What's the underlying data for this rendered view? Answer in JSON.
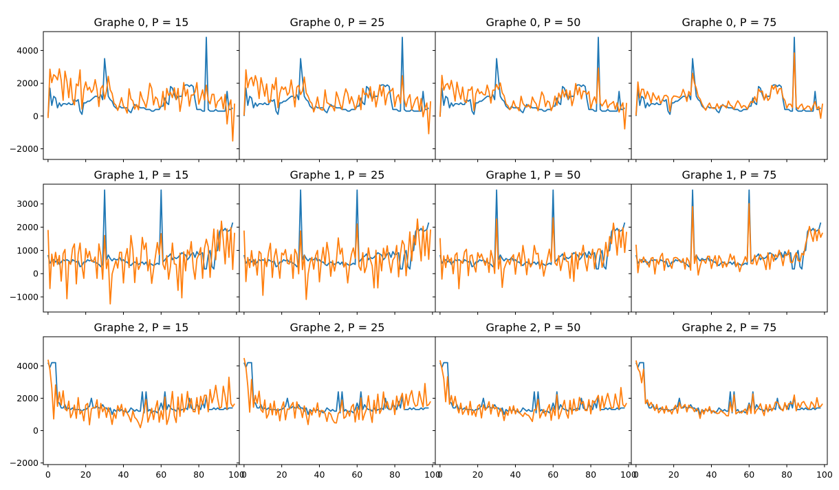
{
  "chart_data": {
    "type": "line",
    "layout": "grid 3x4, shared x axis, y axis shared within each row",
    "colors": {
      "series_0": "#1f77b4",
      "series_1": "#ff7f0e"
    },
    "x_ticks": [
      0,
      20,
      40,
      60,
      80,
      100
    ],
    "xlim": [
      -2.5,
      101.5
    ],
    "grid": false,
    "rows": [
      {
        "ylim": [
          -2650,
          5150
        ],
        "y_ticks": [
          -2000,
          0,
          2000,
          4000
        ],
        "panels": [
          {
            "title": "Graphe 0, P = 15"
          },
          {
            "title": "Graphe 0, P = 25"
          },
          {
            "title": "Graphe 0, P = 50"
          },
          {
            "title": "Graphe 0, P = 75"
          }
        ]
      },
      {
        "ylim": [
          -1650,
          3850
        ],
        "y_ticks": [
          -1000,
          0,
          1000,
          2000,
          3000
        ],
        "panels": [
          {
            "title": "Graphe 1, P = 15"
          },
          {
            "title": "Graphe 1, P = 25"
          },
          {
            "title": "Graphe 1, P = 50"
          },
          {
            "title": "Graphe 1, P = 75"
          }
        ]
      },
      {
        "ylim": [
          -2100,
          5800
        ],
        "y_ticks": [
          -2000,
          0,
          2000,
          4000
        ],
        "panels": [
          {
            "title": "Graphe 2, P = 15"
          },
          {
            "title": "Graphe 2, P = 25"
          },
          {
            "title": "Graphe 2, P = 50"
          },
          {
            "title": "Graphe 2, P = 75"
          }
        ]
      }
    ],
    "series": [
      {
        "name": "",
        "per_row": [
          [
            0,
            1700,
            650,
            1200,
            1100,
            500,
            800,
            600,
            750,
            750,
            700,
            800,
            700,
            700,
            1000,
            900,
            1000,
            300,
            100,
            800,
            800,
            900,
            900,
            1000,
            1100,
            1200,
            1200,
            1100,
            1300,
            1000,
            3500,
            2300,
            1200,
            1000,
            900,
            600,
            500,
            400,
            600,
            500,
            500,
            500,
            500,
            300,
            200,
            500,
            700,
            600,
            600,
            500,
            500,
            500,
            400,
            400,
            400,
            300,
            300,
            400,
            400,
            400,
            600,
            600,
            1100,
            800,
            700,
            1800,
            1700,
            1300,
            1000,
            1200,
            1200,
            1200,
            1800,
            1900,
            1900,
            1800,
            1900,
            1800,
            1000,
            400,
            400,
            400,
            300,
            300,
            4800,
            400,
            300,
            300,
            300,
            400,
            300,
            300,
            300,
            300,
            300,
            1500,
            400,
            400,
            500
          ],
          [
            800,
            450,
            550,
            600,
            500,
            600,
            400,
            500,
            600,
            550,
            600,
            550,
            450,
            600,
            550,
            500,
            550,
            300,
            350,
            500,
            500,
            600,
            550,
            600,
            500,
            500,
            450,
            400,
            300,
            400,
            3600,
            600,
            800,
            650,
            550,
            650,
            600,
            600,
            700,
            550,
            600,
            500,
            500,
            400,
            350,
            450,
            500,
            450,
            400,
            450,
            500,
            400,
            500,
            300,
            450,
            400,
            350,
            400,
            450,
            400,
            3600,
            500,
            600,
            700,
            750,
            850,
            600,
            700,
            650,
            700,
            800,
            900,
            850,
            800,
            600,
            700,
            850,
            900,
            700,
            950,
            800,
            850,
            900,
            200,
            200,
            800,
            1000,
            300,
            200,
            950,
            1000,
            1800,
            1950,
            1850,
            1950,
            1800,
            1850,
            1900,
            2200
          ],
          [
            4200,
            3900,
            4200,
            4200,
            4200,
            1800,
            1700,
            1400,
            1400,
            1600,
            1300,
            1400,
            1300,
            1400,
            1300,
            1300,
            1300,
            1300,
            1200,
            1300,
            1300,
            1400,
            1500,
            2000,
            1400,
            1400,
            1500,
            1400,
            1400,
            1600,
            1400,
            1400,
            1200,
            1400,
            1000,
            1300,
            1200,
            1300,
            1200,
            1300,
            1200,
            1200,
            1100,
            1200,
            1400,
            1300,
            1200,
            1300,
            1200,
            1200,
            2400,
            1100,
            2400,
            1200,
            1300,
            1100,
            1200,
            1200,
            1100,
            1300,
            1700,
            1300,
            2400,
            1300,
            1600,
            1400,
            1300,
            1300,
            1200,
            1400,
            1200,
            1300,
            1300,
            1400,
            1300,
            2000,
            1400,
            1300,
            1300,
            1600,
            1500,
            1300,
            1800,
            1400,
            2100,
            1300,
            1300,
            1300,
            1400,
            1300,
            1400,
            1300,
            1300,
            1300,
            1400,
            1300,
            1400,
            1400,
            1400
          ]
        ]
      },
      {
        "name": "",
        "per_row": {
          "P15": [
            [
              0,
              2900,
              2000,
              2400,
              2500,
              2200,
              2800,
              2300,
              1000,
              2700,
              2000,
              1200,
              2300,
              900,
              800,
              2000,
              1800,
              2700,
              500,
              1600,
              2000,
              1700,
              1800,
              1400,
              1500,
              2300,
              1600,
              500,
              1800,
              1900,
              1000,
              1400,
              2500,
              1600,
              1300,
              900,
              700,
              300,
              600,
              1200,
              600,
              400,
              300,
              1700,
              1000,
              800,
              500,
              700,
              300,
              1600,
              1100,
              800,
              400,
              1200,
              2000,
              1600,
              800,
              1200,
              1000,
              400,
              700,
              1500,
              300,
              1800,
              1300,
              1400,
              1000,
              1800,
              1000,
              1600,
              400,
              1000,
              2000,
              1100,
              1700,
              600,
              1200,
              1400,
              1500,
              2000,
              600,
              1200,
              1600,
              900,
              2000,
              1000,
              700,
              1200,
              1400,
              500,
              800,
              1100,
              1200,
              400,
              1200,
              -400,
              600,
              900,
              -1400,
              800
            ],
            [
              2000,
              -600,
              800,
              200,
              1000,
              400,
              700,
              -200,
              900,
              1000,
              -1200,
              600,
              400,
              1000,
              1400,
              -400,
              800,
              1200,
              400,
              -200,
              1000,
              800,
              1000,
              500,
              400,
              800,
              -200,
              1200,
              900,
              -200,
              1600,
              100,
              700,
              -1300,
              -100,
              400,
              600,
              200,
              800,
              1000,
              -400,
              600,
              1200,
              300,
              1600,
              900,
              -300,
              700,
              100,
              500,
              1600,
              1000,
              1200,
              200,
              600,
              -500,
              300,
              800,
              1300,
              700,
              1800,
              400,
              100,
              900,
              -200,
              300,
              1200,
              500,
              400,
              -800,
              1000,
              -1000,
              900,
              0,
              1100,
              800,
              1300,
              400,
              -200,
              600,
              700,
              1200,
              -200,
              1000,
              1600,
              1200,
              -200,
              900,
              2000,
              600,
              1800,
              1100,
              2300,
              1400,
              300,
              2000,
              700,
              1900,
              300,
              1800
            ],
            [
              4500,
              3800,
              2600,
              600,
              2900,
              1500,
              2300,
              1700,
              2500,
              1300,
              1100,
              1900,
              800,
              1000,
              1700,
              800,
              2000,
              900,
              1300,
              600,
              1500,
              1800,
              400,
              1300,
              1300,
              1500,
              1900,
              700,
              1800,
              1200,
              1400,
              700,
              1500,
              1000,
              300,
              1200,
              800,
              1500,
              1100,
              1700,
              900,
              1300,
              1200,
              900,
              500,
              1100,
              900,
              700,
              400,
              300,
              700,
              1300,
              1800,
              600,
              900,
              1300,
              800,
              1400,
              1800,
              400,
              1300,
              700,
              2000,
              500,
              800,
              1400,
              2300,
              1000,
              500,
              2000,
              1000,
              2300,
              1100,
              1300,
              2500,
              1400,
              1900,
              1300,
              1200,
              2000,
              900,
              2200,
              1600,
              2100,
              2300,
              1200,
              2500,
              1600,
              2200,
              2800,
              1900,
              1500,
              1500,
              2700,
              2000,
              1400,
              3300,
              1600,
              1600,
              1700
            ]
          ]
        }
      }
    ]
  }
}
